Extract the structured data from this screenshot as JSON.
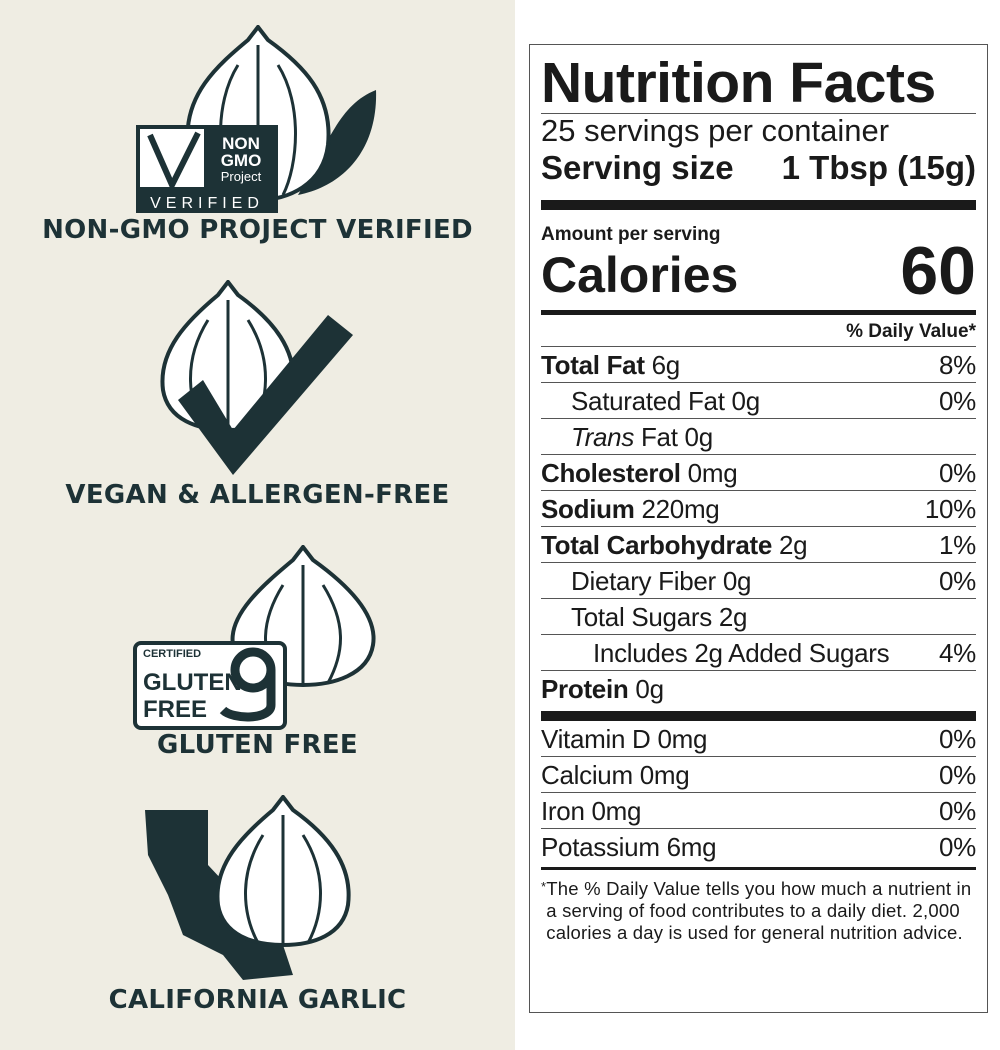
{
  "badges": [
    {
      "caption": "NON-GMO PROJECT VERIFIED",
      "seal": "NON GMO Project VERIFIED",
      "icon": "garlic-leaf-icon"
    },
    {
      "caption": "VEGAN & ALLERGEN-FREE",
      "icon": "garlic-checkmark-icon"
    },
    {
      "caption": "GLUTEN FREE",
      "seal": "CERTIFIED GLUTEN FREE",
      "icon": "garlic-gluten-free-icon"
    },
    {
      "caption": "CALIFORNIA GARLIC",
      "icon": "garlic-california-icon"
    }
  ],
  "colors": {
    "dark": "#1d3236",
    "background": "#efede3"
  },
  "nutrition": {
    "title": "Nutrition Facts",
    "servings": "25 servings per container",
    "serving_size_label": "Serving size",
    "serving_size_value": "1 Tbsp (15g)",
    "amount_per_serving": "Amount per serving",
    "calories_label": "Calories",
    "calories_value": "60",
    "dv_header": "% Daily Value*",
    "rows": [
      {
        "bold": "Total Fat",
        "amount": "6g",
        "dv": "8%"
      },
      {
        "name": "Saturated Fat 0g",
        "dv": "0%"
      },
      {
        "italic": "Trans",
        "name": " Fat 0g",
        "dv": ""
      },
      {
        "bold": "Cholesterol",
        "amount": "0mg",
        "dv": "0%"
      },
      {
        "bold": "Sodium",
        "amount": "220mg",
        "dv": "10%"
      },
      {
        "bold": "Total Carbohydrate",
        "amount": "2g",
        "dv": "1%"
      },
      {
        "name": "Dietary Fiber 0g",
        "dv": "0%"
      },
      {
        "name": "Total Sugars 2g",
        "dv": ""
      },
      {
        "name": "Includes 2g Added Sugars",
        "dv": "4%"
      },
      {
        "bold": "Protein",
        "amount": "0g",
        "dv": ""
      }
    ],
    "vitamins": [
      {
        "name": "Vitamin D 0mg",
        "dv": "0%"
      },
      {
        "name": "Calcium 0mg",
        "dv": "0%"
      },
      {
        "name": "Iron 0mg",
        "dv": "0%"
      },
      {
        "name": "Potassium 6mg",
        "dv": "0%"
      }
    ],
    "footnote_mark": "*",
    "footnote": "The % Daily Value tells you how much a nutrient in a serving of food contributes to a daily diet. 2,000 calories a day is used for general nutrition advice."
  }
}
